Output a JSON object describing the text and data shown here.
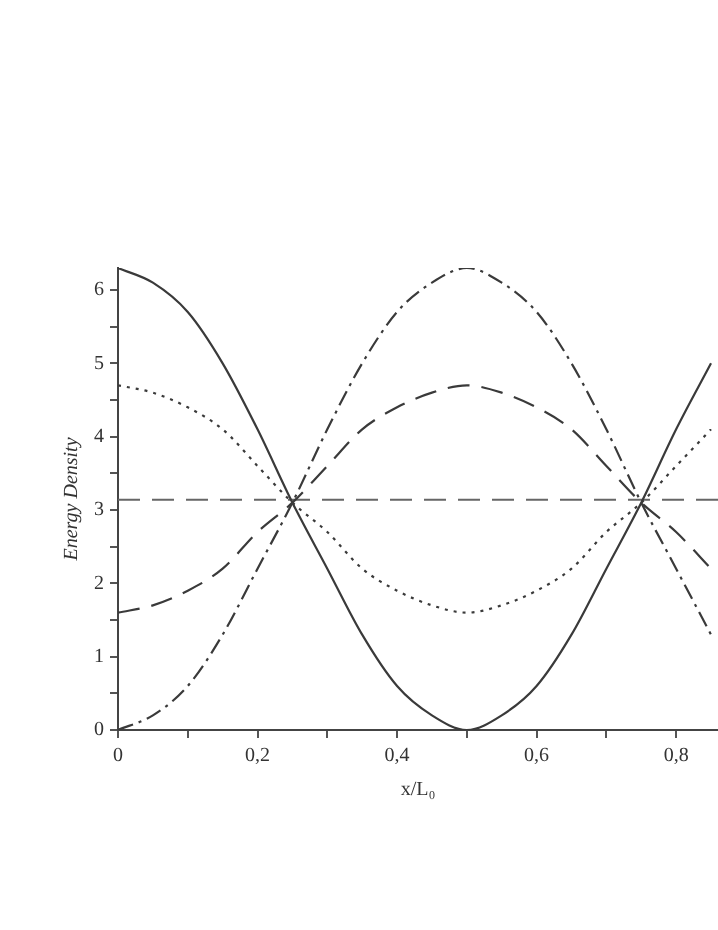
{
  "chart_data": {
    "type": "line",
    "xlabel": "x/L₀",
    "ylabel": "Energy Density",
    "x": [
      0,
      0.05,
      0.1,
      0.15,
      0.2,
      0.25,
      0.3,
      0.35,
      0.4,
      0.45,
      0.5,
      0.55,
      0.6,
      0.65,
      0.7,
      0.75,
      0.8,
      0.85
    ],
    "series": [
      {
        "color": "#3a3a3a",
        "line_style": "solid",
        "values": [
          6.3,
          6.1,
          5.7,
          5.0,
          4.1,
          3.1,
          2.2,
          1.3,
          0.6,
          0.2,
          0,
          0.2,
          0.6,
          1.3,
          2.2,
          3.1,
          4.1,
          5.0
        ]
      },
      {
        "color": "#3a3a3a",
        "line_style": "dashdot",
        "values": [
          0,
          0.2,
          0.6,
          1.3,
          2.2,
          3.1,
          4.1,
          5.0,
          5.7,
          6.1,
          6.3,
          6.1,
          5.7,
          5.0,
          4.1,
          3.1,
          2.2,
          1.3
        ]
      },
      {
        "color": "#3a3a3a",
        "line_style": "dashed",
        "values": [
          1.6,
          1.7,
          1.9,
          2.2,
          2.7,
          3.1,
          3.6,
          4.1,
          4.4,
          4.6,
          4.7,
          4.6,
          4.4,
          4.1,
          3.6,
          3.1,
          2.7,
          2.2
        ]
      },
      {
        "color": "#3a3a3a",
        "line_style": "dotted",
        "values": [
          4.7,
          4.6,
          4.4,
          4.1,
          3.6,
          3.1,
          2.7,
          2.2,
          1.9,
          1.7,
          1.6,
          1.7,
          1.9,
          2.2,
          2.7,
          3.1,
          3.6,
          4.1
        ]
      },
      {
        "color": "#666666",
        "line_style": "dashed",
        "x": [
          0,
          0.86
        ],
        "values": [
          3.14,
          3.14
        ]
      }
    ],
    "xlim": [
      0,
      0.86
    ],
    "xticks": [
      {
        "value": 0,
        "label": "0"
      },
      {
        "value": 0.1,
        "label": null
      },
      {
        "value": 0.2,
        "label": "0,2"
      },
      {
        "value": 0.3,
        "label": null
      },
      {
        "value": 0.4,
        "label": "0,4"
      },
      {
        "value": 0.5,
        "label": null
      },
      {
        "value": 0.6,
        "label": "0,6"
      },
      {
        "value": 0.7,
        "label": null
      },
      {
        "value": 0.8,
        "label": "0,8"
      }
    ],
    "ylim": [
      0,
      6.3
    ],
    "yticks": [
      0,
      {
        "value": 0.5,
        "label": null
      },
      1,
      {
        "value": 1.5,
        "label": null
      },
      2,
      {
        "value": 2.5,
        "label": null
      },
      3,
      {
        "value": 3.5,
        "label": null
      },
      4,
      {
        "value": 4.5,
        "label": null
      },
      5,
      {
        "value": 5.5,
        "label": null
      },
      6
    ],
    "grid": false,
    "legend": false,
    "marker": "none"
  }
}
